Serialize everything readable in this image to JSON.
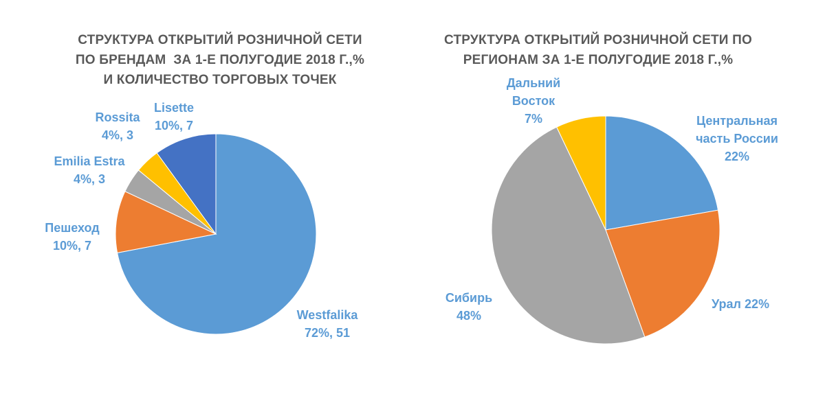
{
  "chart_data": [
    {
      "type": "pie",
      "title_lines": [
        "СТРУКТУРА ОТКРЫТИЙ РОЗНИЧНОЙ СЕТИ",
        "ПО БРЕНДАМ  ЗА 1-Е ПОЛУГОДИЕ 2018 Г.,%",
        "И КОЛИЧЕСТВО ТОРГОВЫХ ТОЧЕК"
      ],
      "slices": [
        {
          "name": "Westfalika",
          "percent": 72,
          "count": 51,
          "color": "#5b9bd5",
          "label_lines": [
            "Westfalika",
            "72%, 51"
          ]
        },
        {
          "name": "Пешеход",
          "percent": 10,
          "count": 7,
          "color": "#ed7d31",
          "label_lines": [
            "Пешеход",
            "10%, 7"
          ]
        },
        {
          "name": "Emilia Estra",
          "percent": 4,
          "count": 3,
          "color": "#a5a5a5",
          "label_lines": [
            "Emilia Estra",
            "4%, 3"
          ]
        },
        {
          "name": "Rossita",
          "percent": 4,
          "count": 3,
          "color": "#ffc000",
          "label_lines": [
            "Rossita",
            "4%, 3"
          ]
        },
        {
          "name": "Lisette",
          "percent": 10,
          "count": 7,
          "color": "#4472c4",
          "label_lines": [
            "Lisette",
            "10%, 7"
          ]
        }
      ],
      "label_color": "#5b9bd5"
    },
    {
      "type": "pie",
      "title_lines": [
        "СТРУКТУРА ОТКРЫТИЙ РОЗНИЧНОЙ СЕТИ ПО",
        "РЕГИОНАМ ЗА 1-Е ПОЛУГОДИЕ 2018 Г.,%"
      ],
      "slices": [
        {
          "name": "Центральная часть России",
          "percent": 22,
          "color": "#5b9bd5",
          "label_lines": [
            "Центральная",
            "часть России",
            "22%"
          ]
        },
        {
          "name": "Урал",
          "percent": 22,
          "color": "#ed7d31",
          "label_lines": [
            "Урал  22%"
          ]
        },
        {
          "name": "Сибирь",
          "percent": 48,
          "color": "#a5a5a5",
          "label_lines": [
            "Сибирь",
            "48%"
          ]
        },
        {
          "name": "Дальний Восток",
          "percent": 7,
          "color": "#ffc000",
          "label_lines": [
            "Дальний",
            "Восток",
            "7%"
          ]
        }
      ],
      "label_color": "#5b9bd5"
    }
  ]
}
